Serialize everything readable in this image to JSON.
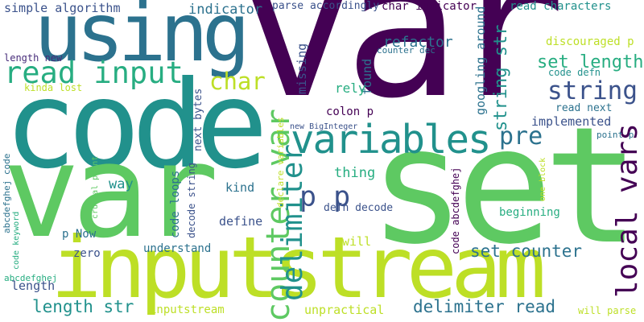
{
  "words": [
    {
      "text": "var",
      "color": "#440154"
    },
    {
      "text": "code",
      "color": "#21918c"
    },
    {
      "text": "var",
      "color": "#5ec962"
    },
    {
      "text": "set",
      "color": "#5ec962"
    },
    {
      "text": "inputstream",
      "color": "#bddf26"
    },
    {
      "text": "using",
      "color": "#2c728e"
    },
    {
      "text": "read input",
      "color": "#27ad81"
    },
    {
      "text": "variables",
      "color": "#21918c"
    },
    {
      "text": "counter var",
      "color": "#5ec962"
    },
    {
      "text": "delimiter",
      "color": "#21918c"
    },
    {
      "text": "local vars",
      "color": "#440154"
    },
    {
      "text": "p p",
      "color": "#3b528b"
    },
    {
      "text": "string",
      "color": "#3b528b"
    },
    {
      "text": "char",
      "color": "#bddf26"
    },
    {
      "text": "pre",
      "color": "#2c728e"
    },
    {
      "text": "set length",
      "color": "#27ad81"
    },
    {
      "text": "string str",
      "color": "#21918c"
    },
    {
      "text": "set counter",
      "color": "#2c728e"
    },
    {
      "text": "length str",
      "color": "#21918c"
    },
    {
      "text": "delimiter read",
      "color": "#2c728e"
    },
    {
      "text": "refactor",
      "color": "#2c728e"
    },
    {
      "text": "simple algorithm",
      "color": "#3b528b"
    },
    {
      "text": "indicator",
      "color": "#2c728e"
    },
    {
      "text": "parse accordingly",
      "color": "#3b528b"
    },
    {
      "text": "char indicator",
      "color": "#440154"
    },
    {
      "text": "read characters",
      "color": "#21918c"
    },
    {
      "text": "discouraged p",
      "color": "#bddf26"
    },
    {
      "text": "googling around",
      "color": "#2c728e"
    },
    {
      "text": "length new",
      "color": "#472c7a"
    },
    {
      "text": "missing",
      "color": "#3b528b"
    },
    {
      "text": "found",
      "color": "#2c728e"
    },
    {
      "text": "counter dec",
      "color": "#2c728e"
    },
    {
      "text": "code defn",
      "color": "#21918c"
    },
    {
      "text": "read next",
      "color": "#2c728e"
    },
    {
      "text": "rely",
      "color": "#27ad81"
    },
    {
      "text": "colon p",
      "color": "#440154"
    },
    {
      "text": "implemented",
      "color": "#3b528b"
    },
    {
      "text": "new BigInteger",
      "color": "#3b528b"
    },
    {
      "text": "point p",
      "color": "#2c728e"
    },
    {
      "text": "kinda lost",
      "color": "#bddf26"
    },
    {
      "text": "next bytes",
      "color": "#3b528b"
    },
    {
      "text": "declare variables",
      "color": "#bddf26"
    },
    {
      "text": "thing",
      "color": "#27ad81"
    },
    {
      "text": "way",
      "color": "#21918c"
    },
    {
      "text": "kind",
      "color": "#2c728e"
    },
    {
      "text": "code loops",
      "color": "#2c728e"
    },
    {
      "text": "decode string",
      "color": "#3b528b"
    },
    {
      "text": "defn decode",
      "color": "#3b528b"
    },
    {
      "text": "define",
      "color": "#3b528b"
    },
    {
      "text": "beginning",
      "color": "#27ad81"
    },
    {
      "text": "crucial point",
      "color": "#5ec962"
    },
    {
      "text": "one block",
      "color": "#bddf26"
    },
    {
      "text": "abcdefghej code",
      "color": "#2c728e"
    },
    {
      "text": "code keyword",
      "color": "#27ad81"
    },
    {
      "text": "p Now",
      "color": "#2c728e"
    },
    {
      "text": "zero",
      "color": "#3b528b"
    },
    {
      "text": "understand",
      "color": "#2c728e"
    },
    {
      "text": "will",
      "color": "#bddf26"
    },
    {
      "text": "code abcdefghej",
      "color": "#440154"
    },
    {
      "text": "abcdefghej",
      "color": "#27ad81"
    },
    {
      "text": "length",
      "color": "#3b528b"
    },
    {
      "text": "inputstream",
      "color": "#bddf26"
    },
    {
      "text": "unpractical",
      "color": "#bddf26"
    },
    {
      "text": "will parse",
      "color": "#bddf26"
    }
  ]
}
